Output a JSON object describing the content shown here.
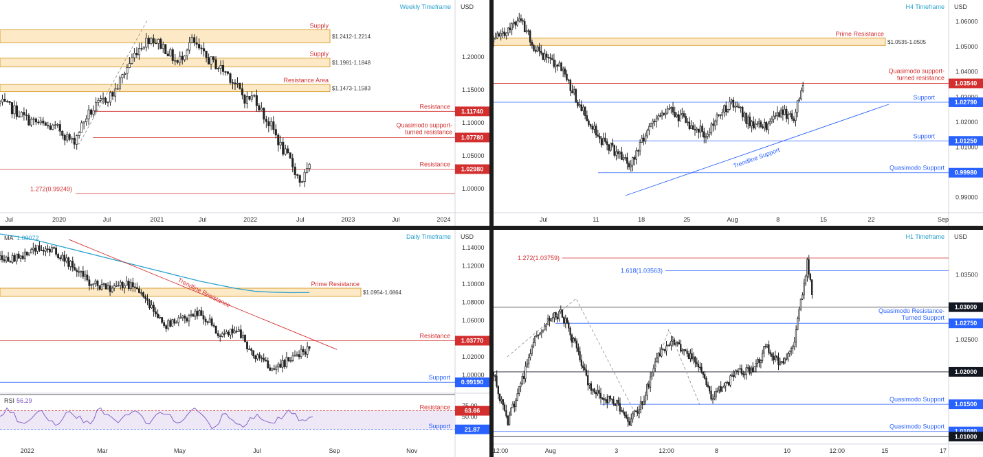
{
  "panels": {
    "weekly": {
      "title": "Weekly Timeframe",
      "currency": "USD",
      "x_ticks": [
        [
          "Jul",
          0.02
        ],
        [
          "2020",
          0.13
        ],
        [
          "Jul",
          0.235
        ],
        [
          "2021",
          0.345
        ],
        [
          "Jul",
          0.445
        ],
        [
          "2022",
          0.55
        ],
        [
          "Jul",
          0.66
        ],
        [
          "2023",
          0.765
        ],
        [
          "Jul",
          0.87
        ],
        [
          "2024",
          0.975
        ]
      ],
      "y_ticks": [
        [
          "1.20000",
          1.2
        ],
        [
          "1.15000",
          1.15
        ],
        [
          "1.10000",
          1.1
        ],
        [
          "1.05000",
          1.05
        ],
        [
          "1.00000",
          1.0
        ]
      ],
      "ylim": [
        0.97,
        1.28
      ],
      "zones": [
        {
          "label": "Supply",
          "range_label": "$1.2412-1.2214",
          "top": 1.2412,
          "bottom": 1.2214
        },
        {
          "label": "Supply",
          "range_label": "$1.1981-1.1848",
          "top": 1.1981,
          "bottom": 1.1848
        },
        {
          "label": "Resistance Area",
          "range_label": "$1.1473-1.1583",
          "top": 1.1583,
          "bottom": 1.1473
        }
      ],
      "levels": [
        {
          "label": "Resistance",
          "price_label": "1.11740",
          "price": 1.1174
        },
        {
          "label": "Quasimodo support-turned resistance",
          "price_label": "1.07780",
          "price": 1.0778
        },
        {
          "label": "Resistance",
          "price_label": "1.02980",
          "price": 1.0298
        },
        {
          "label": "1.272(0.99249)",
          "price_label": "",
          "price": 0.9925
        }
      ]
    },
    "h4": {
      "title": "H4 Timeframe",
      "currency": "USD",
      "x_ticks": [
        [
          "Jul",
          0.11
        ],
        [
          "11",
          0.225
        ],
        [
          "18",
          0.325
        ],
        [
          "25",
          0.425
        ],
        [
          "Aug",
          0.525
        ],
        [
          "8",
          0.625
        ],
        [
          "15",
          0.725
        ],
        [
          "22",
          0.83
        ],
        [
          "Sep",
          0.995
        ]
      ],
      "y_ticks": [
        [
          "1.06000",
          1.06
        ],
        [
          "1.05000",
          1.05
        ],
        [
          "1.04000",
          1.04
        ],
        [
          "1.03000",
          1.03
        ],
        [
          "1.02000",
          1.02
        ],
        [
          "1.01000",
          1.01
        ],
        [
          "1.00000",
          1.0
        ],
        [
          "0.99000",
          0.99
        ]
      ],
      "ylim": [
        0.9855,
        1.067
      ],
      "zones": [
        {
          "label": "Prime Resistance",
          "range_label": "$1.0535-1.0505",
          "top": 1.0535,
          "bottom": 1.0505
        }
      ],
      "levels": [
        {
          "label": "Quasimodo support-turned resistance",
          "price_label": "1.03540",
          "price": 1.0354
        },
        {
          "label": "Support",
          "price_label": "1.02790",
          "price": 1.0279
        },
        {
          "label": "Support",
          "price_label": "1.01250",
          "price": 1.0125
        },
        {
          "label": "Quasimodo Support",
          "price_label": "0.99980",
          "price": 0.9998
        }
      ],
      "trendline_label": "Trendline Support"
    },
    "daily": {
      "title": "Daily Timeframe",
      "currency": "USD",
      "ma_label": "MA",
      "ma_value": "1.09072",
      "x_ticks": [
        [
          "2022",
          0.06
        ],
        [
          "Mar",
          0.225
        ],
        [
          "May",
          0.395
        ],
        [
          "Jul",
          0.565
        ],
        [
          "Sep",
          0.735
        ],
        [
          "Nov",
          0.905
        ]
      ],
      "y_ticks": [
        [
          "1.14000",
          1.14
        ],
        [
          "1.12000",
          1.12
        ],
        [
          "1.10000",
          1.1
        ],
        [
          "1.08000",
          1.08
        ],
        [
          "1.06000",
          1.06
        ],
        [
          "1.04000",
          1.04
        ],
        [
          "1.02000",
          1.02
        ],
        [
          "1.00000",
          1.0
        ]
      ],
      "ylim": [
        0.9845,
        1.155
      ],
      "zones": [
        {
          "label": "Prime Resistance",
          "range_label": "$1.0954-1.0864",
          "top": 1.0954,
          "bottom": 1.0864
        }
      ],
      "levels": [
        {
          "label": "Resistance",
          "price_label": "1.03770",
          "price": 1.0377
        },
        {
          "label": "Support",
          "price_label": "0.99190",
          "price": 0.9919
        }
      ],
      "trendline_label": "Trendline Resistance",
      "rsi": {
        "label": "RSI",
        "value": "56.29",
        "y_ticks": [
          [
            "75.00",
            75
          ],
          [
            "50.00",
            50
          ],
          [
            "25.00",
            25
          ]
        ],
        "levels": [
          {
            "label": "Resistance",
            "price_label": "63.66",
            "value": 63.66
          },
          {
            "label": "Support",
            "price_label": "21.87",
            "value": 21.87
          }
        ]
      }
    },
    "h1": {
      "title": "H1 Timeframe",
      "currency": "USD",
      "x_ticks": [
        [
          "12:00",
          0.0
        ],
        [
          "Aug",
          0.125
        ],
        [
          "3",
          0.27
        ],
        [
          "12:00",
          0.38
        ],
        [
          "8",
          0.49
        ],
        [
          "10",
          0.645
        ],
        [
          "12:00",
          0.755
        ],
        [
          "15",
          0.86
        ],
        [
          "17",
          0.99
        ]
      ],
      "y_ticks": [
        [
          "1.03500",
          1.035
        ],
        [
          "1.02500",
          1.025
        ],
        [
          "1.01500",
          1.015
        ]
      ],
      "ylim": [
        1.0095,
        1.0413
      ],
      "fibs": [
        {
          "label": "1.272(1.03759)",
          "price": 1.03759
        },
        {
          "label": "1.618(1.03563)",
          "price": 1.03563
        }
      ],
      "levels": [
        {
          "label": "",
          "price_label": "1.03000",
          "price": 1.03
        },
        {
          "label": "Quasimodo Resistance-Turned Support",
          "price_label": "1.02750",
          "price": 1.0275
        },
        {
          "label": "",
          "price_label": "1.02000",
          "price": 1.02
        },
        {
          "label": "Quasimodo Support",
          "price_label": "1.01500",
          "price": 1.015
        },
        {
          "label": "Quasimodo Support",
          "price_label": "1.01080",
          "price": 1.0108
        },
        {
          "label": "",
          "price_label": "1.01000",
          "price": 1.01
        }
      ]
    }
  },
  "chart_data": [
    {
      "type": "line",
      "title": "Weekly Timeframe",
      "ylabel": "USD",
      "ylim": [
        0.97,
        1.28
      ],
      "x": [
        0.0,
        0.03,
        0.06,
        0.1,
        0.13,
        0.16,
        0.19,
        0.22,
        0.25,
        0.28,
        0.3,
        0.33,
        0.36,
        0.39,
        0.42,
        0.45,
        0.48,
        0.5,
        0.52,
        0.54,
        0.56,
        0.58,
        0.6,
        0.62,
        0.64,
        0.66,
        0.68
      ],
      "series": [
        {
          "values": [
            1.13,
            1.12,
            1.105,
            1.095,
            1.09,
            1.07,
            1.11,
            1.13,
            1.145,
            1.185,
            1.21,
            1.23,
            1.215,
            1.19,
            1.225,
            1.2,
            1.185,
            1.175,
            1.155,
            1.135,
            1.14,
            1.11,
            1.09,
            1.06,
            1.04,
            1.01,
            1.03
          ]
        }
      ]
    },
    {
      "type": "line",
      "title": "H4 Timeframe",
      "ylabel": "USD",
      "ylim": [
        0.9855,
        1.067
      ],
      "x": [
        0.0,
        0.03,
        0.06,
        0.09,
        0.12,
        0.15,
        0.18,
        0.21,
        0.24,
        0.27,
        0.3,
        0.32,
        0.35,
        0.38,
        0.41,
        0.44,
        0.47,
        0.5,
        0.53,
        0.56,
        0.6,
        0.63,
        0.66,
        0.68
      ],
      "series": [
        {
          "values": [
            1.052,
            1.057,
            1.06,
            1.05,
            1.045,
            1.042,
            1.03,
            1.02,
            1.012,
            1.008,
            1.002,
            1.01,
            1.02,
            1.025,
            1.022,
            1.018,
            1.015,
            1.025,
            1.028,
            1.02,
            1.018,
            1.024,
            1.022,
            1.034
          ]
        }
      ]
    },
    {
      "type": "line",
      "title": "Daily Timeframe",
      "ylabel": "USD",
      "ylim": [
        0.9845,
        1.155
      ],
      "x": [
        0.0,
        0.04,
        0.08,
        0.12,
        0.16,
        0.2,
        0.24,
        0.28,
        0.32,
        0.36,
        0.4,
        0.44,
        0.48,
        0.52,
        0.56,
        0.6,
        0.64,
        0.68
      ],
      "series": [
        {
          "values": [
            1.127,
            1.13,
            1.14,
            1.135,
            1.12,
            1.1,
            1.095,
            1.1,
            1.085,
            1.055,
            1.06,
            1.07,
            1.045,
            1.05,
            1.02,
            1.005,
            1.018,
            1.03
          ]
        },
        {
          "values": [
            1.155,
            1.152,
            1.148,
            1.143,
            1.138,
            1.133,
            1.128,
            1.123,
            1.118,
            1.113,
            1.108,
            1.103,
            1.099,
            1.095,
            1.092,
            1.091,
            1.0905,
            1.0907
          ]
        }
      ]
    },
    {
      "type": "line",
      "title": "H1 Timeframe",
      "ylabel": "USD",
      "ylim": [
        1.0095,
        1.0413
      ],
      "x": [
        0.0,
        0.03,
        0.06,
        0.09,
        0.12,
        0.15,
        0.18,
        0.21,
        0.24,
        0.27,
        0.3,
        0.33,
        0.36,
        0.39,
        0.42,
        0.45,
        0.48,
        0.51,
        0.54,
        0.57,
        0.6,
        0.63,
        0.66,
        0.68,
        0.69,
        0.7
      ],
      "series": [
        {
          "values": [
            1.02,
            1.012,
            1.018,
            1.025,
            1.028,
            1.029,
            1.024,
            1.018,
            1.016,
            1.015,
            1.012,
            1.016,
            1.022,
            1.025,
            1.023,
            1.021,
            1.016,
            1.018,
            1.02,
            1.02,
            1.024,
            1.021,
            1.024,
            1.033,
            1.037,
            1.032
          ]
        }
      ]
    }
  ],
  "colors": {
    "zone_fill": "#fde9c6",
    "zone_border": "#d8a033",
    "red": "#d32f2f",
    "blue": "#2962ff",
    "ma": "#29a0cf",
    "rsi": "#7e57c2",
    "dark": "#131722"
  }
}
